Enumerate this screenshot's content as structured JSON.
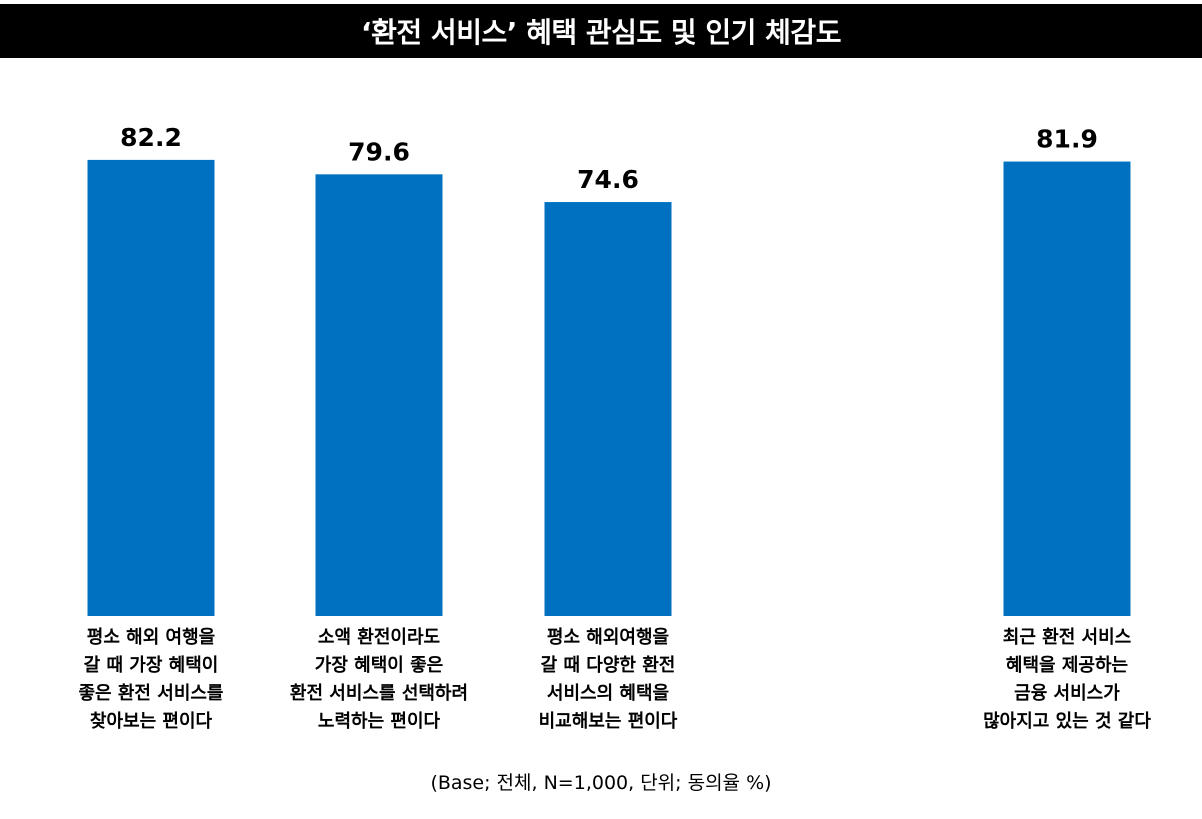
{
  "title": "‘환전 서비스’ 혜택 관심도 및 인기 체감도",
  "footnote": "(Base; 전체, N=1,000, 단위; 동의율 %)",
  "colors": {
    "bar": "#0070C0",
    "title_bg": "#000000",
    "title_text": "#FFFFFF"
  },
  "chart_data": {
    "type": "bar",
    "title": "‘환전 서비스’ 혜택 관심도 및 인기 체감도",
    "categories": [
      [
        "평소 해외 여행을",
        "갈 때 가장 혜택이",
        "좋은 환전 서비스를",
        "찾아보는 편이다"
      ],
      [
        "소액 환전이라도",
        "가장 혜택이 좋은",
        "환전 서비스를 선택하려",
        "노력하는 편이다"
      ],
      [
        "평소 해외여행을",
        "갈 때 다양한 환전",
        "서비스의 혜택을",
        "비교해보는 편이다"
      ],
      [
        "최근 환전 서비스",
        "혜택을 제공하는",
        "금융 서비스가",
        "많아지고 있는 것 같다"
      ]
    ],
    "values": [
      82.2,
      79.6,
      74.6,
      81.9
    ],
    "value_labels": [
      "82.2",
      "79.6",
      "74.6",
      "81.9"
    ],
    "unit": "%",
    "grid": false,
    "xlabel": "",
    "ylabel": ""
  }
}
